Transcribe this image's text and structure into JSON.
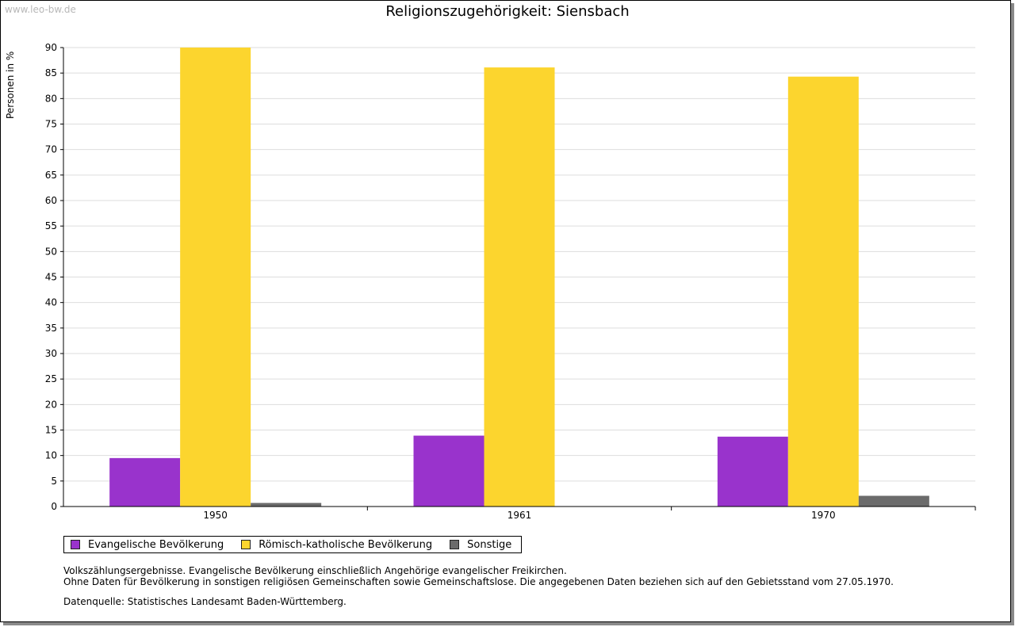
{
  "watermark": "www.leo-bw.de",
  "colors": {
    "evangelisch": "#9933cc",
    "katholisch": "#fcd52e",
    "sonstige": "#6b6b6b",
    "grid": "#dddddd"
  },
  "chart_data": {
    "type": "bar",
    "title": "Religionszugehörigkeit: Siensbach",
    "xlabel": "",
    "ylabel": "Personen in %",
    "ylim": [
      0,
      90
    ],
    "yticks": [
      0,
      5,
      10,
      15,
      20,
      25,
      30,
      35,
      40,
      45,
      50,
      55,
      60,
      65,
      70,
      75,
      80,
      85,
      90
    ],
    "grid": true,
    "categories": [
      "1950",
      "1961",
      "1970"
    ],
    "series": [
      {
        "name": "Evangelische Bevölkerung",
        "values": [
          9.5,
          13.9,
          13.7
        ]
      },
      {
        "name": "Römisch-katholische Bevölkerung",
        "values": [
          90.0,
          86.1,
          84.3
        ]
      },
      {
        "name": "Sonstige",
        "values": [
          0.7,
          0.0,
          2.1
        ]
      }
    ],
    "legend_position": "bottom-left"
  },
  "notes": [
    "Volkszählungsergebnisse. Evangelische Bevölkerung einschließlich Angehörige evangelischer Freikirchen.",
    "Ohne Daten für Bevölkerung in sonstigen religiösen Gemeinschaften sowie Gemeinschaftslose. Die angegebenen Daten beziehen sich auf den Gebietsstand vom 27.05.1970."
  ],
  "source": "Datenquelle: Statistisches Landesamt Baden-Württemberg."
}
